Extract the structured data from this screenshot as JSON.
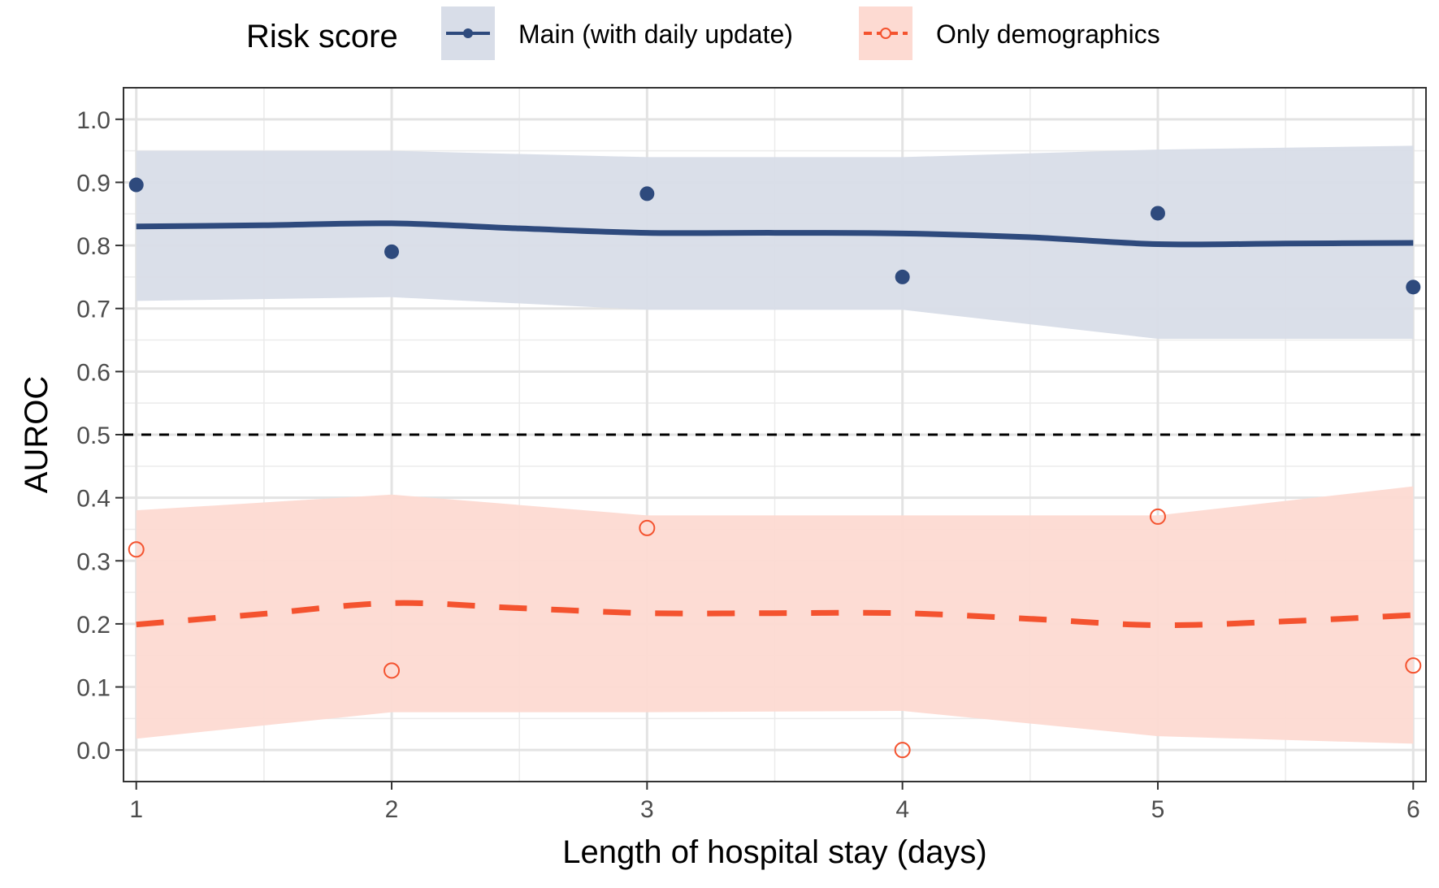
{
  "chart_data": {
    "type": "line",
    "xlabel": "Length of hospital stay (days)",
    "ylabel": "AUROC",
    "xlim": [
      0.95,
      6.05
    ],
    "ylim": [
      -0.05,
      1.05
    ],
    "x_ticks": [
      1,
      2,
      3,
      4,
      5,
      6
    ],
    "y_ticks": [
      0.0,
      0.1,
      0.2,
      0.3,
      0.4,
      0.5,
      0.6,
      0.7,
      0.8,
      0.9,
      1.0
    ],
    "y_tick_labels": [
      "0.0",
      "0.1",
      "0.2",
      "0.3",
      "0.4",
      "0.5",
      "0.6",
      "0.7",
      "0.8",
      "0.9",
      "1.0"
    ],
    "x_tick_labels": [
      "1",
      "2",
      "3",
      "4",
      "5",
      "6"
    ],
    "grid": true,
    "reference_line": {
      "y": 0.5,
      "style": "dashed",
      "color": "#000000"
    },
    "legend": {
      "title": "Risk score",
      "position": "top"
    },
    "series": [
      {
        "name": "Main (with daily update)",
        "color": "#2E4A7D",
        "band_color": "#D8DDE8",
        "marker": "filled-circle",
        "line_style": "solid",
        "x": [
          1,
          2,
          3,
          4,
          5,
          6
        ],
        "points": [
          0.896,
          0.79,
          0.882,
          0.75,
          0.851,
          0.734
        ],
        "fit": [
          0.83,
          0.835,
          0.82,
          0.819,
          0.802,
          0.804
        ],
        "fit_x": [
          1,
          1.5,
          2,
          2.5,
          3,
          3.5,
          4,
          4.5,
          5,
          5.5,
          6
        ],
        "fit_y": [
          0.83,
          0.832,
          0.835,
          0.827,
          0.82,
          0.82,
          0.819,
          0.813,
          0.802,
          0.803,
          0.804
        ],
        "band_lower": [
          0.712,
          0.718,
          0.698,
          0.698,
          0.652,
          0.652
        ],
        "band_upper": [
          0.95,
          0.95,
          0.94,
          0.94,
          0.952,
          0.958
        ]
      },
      {
        "name": "Only demographics",
        "color": "#F4532F",
        "band_color": "#FDDAD2",
        "marker": "open-circle",
        "line_style": "dashed",
        "x": [
          1,
          2,
          3,
          4,
          5,
          6
        ],
        "points": [
          0.318,
          0.126,
          0.352,
          0.0,
          0.37,
          0.134
        ],
        "fit": [
          0.199,
          0.233,
          0.217,
          0.217,
          0.198,
          0.214
        ],
        "fit_x": [
          1,
          1.5,
          2,
          2.5,
          3,
          3.5,
          4,
          4.5,
          5,
          5.5,
          6
        ],
        "fit_y": [
          0.199,
          0.216,
          0.233,
          0.225,
          0.217,
          0.217,
          0.217,
          0.208,
          0.198,
          0.204,
          0.214
        ],
        "band_lower": [
          0.018,
          0.06,
          0.06,
          0.062,
          0.022,
          0.01
        ],
        "band_upper": [
          0.38,
          0.405,
          0.372,
          0.372,
          0.372,
          0.418
        ]
      }
    ]
  }
}
